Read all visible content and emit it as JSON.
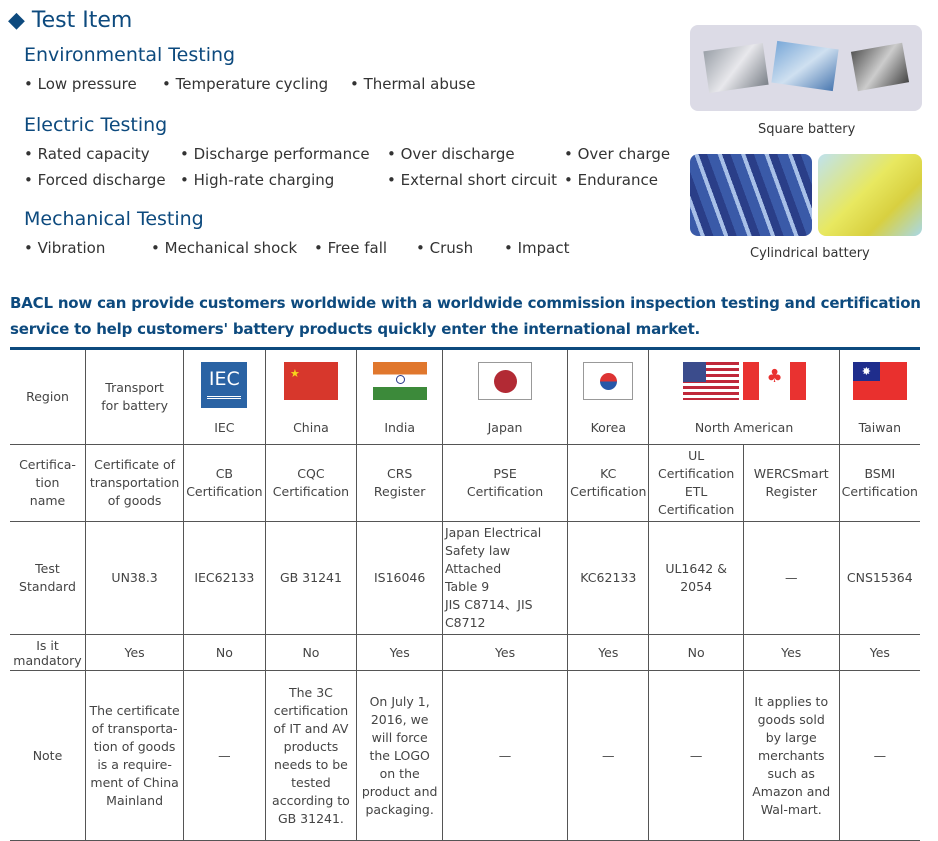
{
  "heading": "◆ Test Item",
  "sections": [
    {
      "title": "Environmental Testing",
      "items": [
        "Low pressure",
        "Temperature cycling",
        "Thermal abuse"
      ]
    },
    {
      "title": "Electric Testing",
      "items": [
        "Rated capacity",
        "Discharge performance",
        "Over discharge",
        "Over charge",
        "Forced discharge",
        "High-rate charging",
        "External short circuit",
        "Endurance"
      ]
    },
    {
      "title": "Mechanical Testing",
      "items": [
        "Vibration",
        "Mechanical shock",
        "Free fall",
        "Crush",
        "Impact"
      ]
    }
  ],
  "images": {
    "square_caption": "Square battery",
    "cylindrical_caption": "Cylindrical battery"
  },
  "banner": "BACL now can provide customers worldwide with a worldwide commission inspection  testing and certification service to help customers' battery products quickly enter the international market.",
  "table": {
    "row_labels": [
      "Region",
      "Certifica-\ntion\nname",
      "Test\nStandard",
      "Is it\nmandatory",
      "Note"
    ],
    "regions": [
      "Transport\nfor battery",
      "IEC",
      "China",
      "India",
      "Japan",
      "Korea",
      "North American",
      "Taiwan"
    ],
    "iec_logo": "IEC",
    "cert_names": [
      "Certificate of\ntransportation\nof goods",
      "CB\nCertification",
      "CQC\nCertification",
      "CRS\nRegister",
      "PSE\nCertification",
      "KC\nCertification",
      "UL\nCertification\nETL\nCertification",
      "WERCSmart\nRegister",
      "BSMI\nCertification"
    ],
    "standards": [
      "UN38.3",
      "IEC62133",
      "GB 31241",
      "IS16046",
      "Japan Electrical\nSafety law Attached\nTable 9\nJIS C8714、JIS C8712",
      "KC62133",
      "UL1642 & 2054",
      "—",
      "CNS15364"
    ],
    "mandatory": [
      "Yes",
      "No",
      "No",
      "Yes",
      "Yes",
      "Yes",
      "No",
      "Yes",
      "Yes"
    ],
    "notes": [
      "The certificate\nof transporta-\ntion of goods\nis a require-\nment of China\nMainland",
      "—",
      "The 3C\ncertification\nof IT and AV\nproducts\nneeds to be\ntested\naccording to\nGB 31241.",
      "On July 1,\n2016, we\nwill force\nthe LOGO\non the\nproduct and\npackaging.",
      "—",
      "—",
      "—",
      "It applies to\ngoods sold\nby large\nmerchants\nsuch as\nAmazon and\nWal-mart.",
      "—"
    ]
  },
  "colors": {
    "brand": "#0d4a7e"
  }
}
